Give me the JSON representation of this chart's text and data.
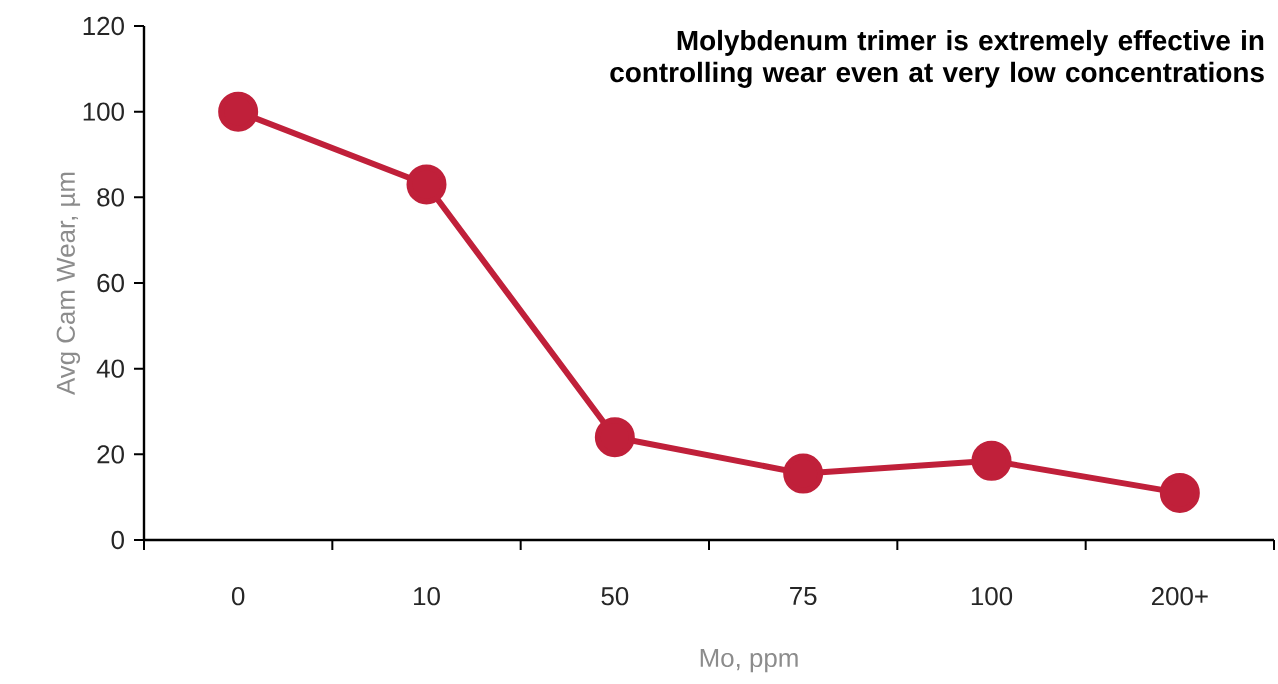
{
  "chart_data": {
    "type": "line",
    "categories": [
      "0",
      "10",
      "50",
      "75",
      "100",
      "200+"
    ],
    "series": [
      {
        "color": "#c0203a",
        "values": [
          100,
          83,
          24,
          15.5,
          18.5,
          11
        ]
      }
    ],
    "xlabel": "Mo, ppm",
    "ylabel": "Avg Cam Wear, µm",
    "ylim": [
      0,
      120
    ],
    "yticks": [
      0,
      20,
      40,
      60,
      80,
      100,
      120
    ],
    "annotations": [
      "Molybdenum trimer is extremely effective in controlling wear even at very low concentrations"
    ],
    "marker": "circle",
    "line_style": "solid",
    "grid": false
  }
}
